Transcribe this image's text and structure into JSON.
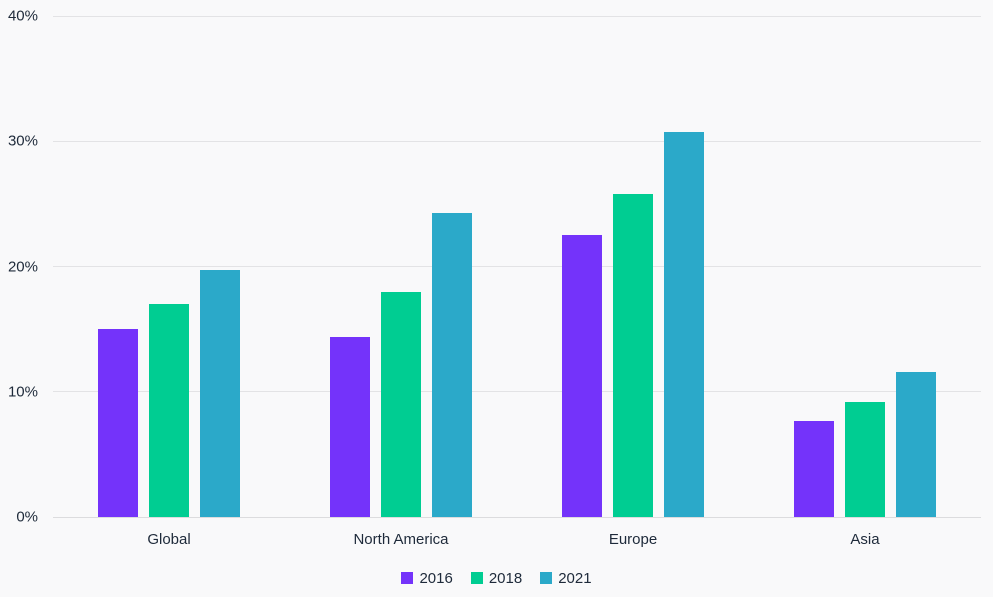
{
  "chart_data": {
    "type": "bar",
    "title": "",
    "categories": [
      "Global",
      "North America",
      "Europe",
      "Asia"
    ],
    "series": [
      {
        "name": "2016",
        "color": "#7433fa",
        "values": [
          15.0,
          14.4,
          22.5,
          7.7
        ]
      },
      {
        "name": "2018",
        "color": "#00cd92",
        "values": [
          17.0,
          18.0,
          25.8,
          9.2
        ]
      },
      {
        "name": "2021",
        "color": "#2ba9c9",
        "values": [
          19.7,
          24.3,
          30.7,
          11.6
        ]
      }
    ],
    "xlabel": "",
    "ylabel": "",
    "ylim": [
      0,
      40
    ],
    "y_ticks": [
      "0%",
      "10%",
      "20%",
      "30%",
      "40%"
    ],
    "y_tick_values": [
      0,
      10,
      20,
      30,
      40
    ],
    "grid": true,
    "legend_position": "bottom"
  },
  "colors": {
    "background": "#f9f9fa",
    "gridline": "#e3e3e5",
    "axis_line": "#dcdcde",
    "text": "#1e2a3a"
  }
}
